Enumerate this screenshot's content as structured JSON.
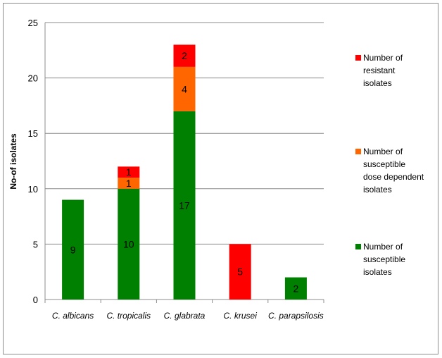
{
  "chart_data": {
    "type": "bar",
    "stacked": true,
    "categories": [
      "C. albicans",
      "C.  tropicalis",
      "C.  glabrata",
      "C. krusei",
      "C. parapsilosis"
    ],
    "ylabel": "No-of isolates",
    "xlabel": "",
    "ylim": [
      0,
      25
    ],
    "yticks": [
      0,
      5,
      10,
      15,
      20,
      25
    ],
    "grid": true,
    "legend_position": "right",
    "series": [
      {
        "name": "Number of susceptible isolates",
        "legend_lines": [
          "Number of",
          "susceptible",
          "isolates"
        ],
        "color": "#008000",
        "values": [
          9,
          10,
          17,
          0,
          2
        ]
      },
      {
        "name": "Number of susceptible dose dependent isolates",
        "legend_lines": [
          "Number of",
          "susceptible",
          "dose dependent",
          "isolates"
        ],
        "color": "#ff6600",
        "values": [
          0,
          1,
          4,
          0,
          0
        ]
      },
      {
        "name": "Number of resistant isolates",
        "legend_lines": [
          "Number of",
          "resistant",
          "isolates"
        ],
        "color": "#ff0000",
        "values": [
          0,
          1,
          2,
          5,
          0
        ]
      }
    ]
  }
}
